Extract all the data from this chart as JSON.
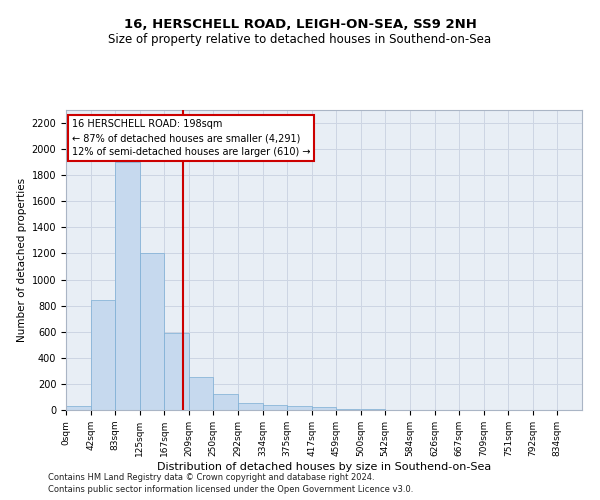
{
  "title": "16, HERSCHELL ROAD, LEIGH-ON-SEA, SS9 2NH",
  "subtitle": "Size of property relative to detached houses in Southend-on-Sea",
  "xlabel": "Distribution of detached houses by size in Southend-on-Sea",
  "ylabel": "Number of detached properties",
  "bar_labels": [
    "0sqm",
    "42sqm",
    "83sqm",
    "125sqm",
    "167sqm",
    "209sqm",
    "250sqm",
    "292sqm",
    "334sqm",
    "375sqm",
    "417sqm",
    "459sqm",
    "500sqm",
    "542sqm",
    "584sqm",
    "626sqm",
    "667sqm",
    "709sqm",
    "751sqm",
    "792sqm",
    "834sqm"
  ],
  "bar_values": [
    30,
    840,
    1900,
    1200,
    590,
    250,
    120,
    50,
    40,
    30,
    20,
    10,
    5,
    3,
    2,
    2,
    1,
    1,
    0,
    0,
    0
  ],
  "bar_color": "#c6d9ee",
  "bar_edge_color": "#7badd4",
  "ylim": [
    0,
    2300
  ],
  "yticks": [
    0,
    200,
    400,
    600,
    800,
    1000,
    1200,
    1400,
    1600,
    1800,
    2000,
    2200
  ],
  "property_size": 198,
  "property_label": "16 HERSCHELL ROAD: 198sqm",
  "annotation_line1": "← 87% of detached houses are smaller (4,291)",
  "annotation_line2": "12% of semi-detached houses are larger (610) →",
  "vline_color": "#cc0000",
  "annotation_box_facecolor": "#ffffff",
  "annotation_box_edge": "#cc0000",
  "grid_color": "#cdd5e3",
  "bg_color": "#e8eef5",
  "footnote1": "Contains HM Land Registry data © Crown copyright and database right 2024.",
  "footnote2": "Contains public sector information licensed under the Open Government Licence v3.0.",
  "bin_edges": [
    0,
    42,
    83,
    125,
    167,
    209,
    250,
    292,
    334,
    375,
    417,
    459,
    500,
    542,
    584,
    626,
    667,
    709,
    751,
    792,
    834,
    876
  ]
}
